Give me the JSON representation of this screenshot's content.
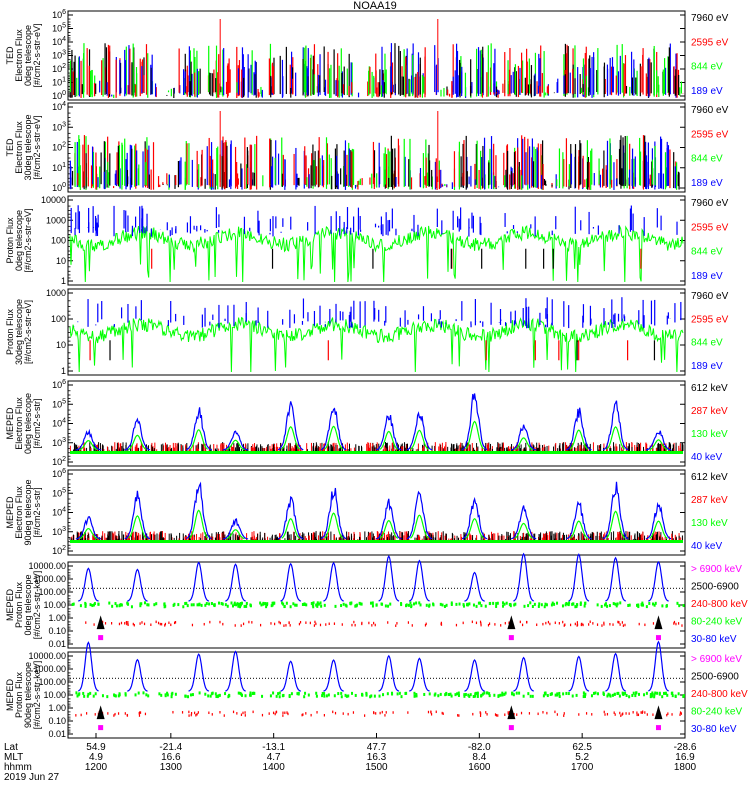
{
  "title": "NOAA19",
  "colors": {
    "black": "#000000",
    "red": "#ff0000",
    "green": "#00ff00",
    "blue": "#0000ff",
    "magenta": "#ff00ff"
  },
  "panels": [
    {
      "ylabel": [
        "TED",
        "Electron Flux",
        "0deg telescope",
        "[#/cm2-s-str-eV]"
      ],
      "yticks": [
        "10^6",
        "10^5",
        "10^4",
        "10^3",
        "10^2",
        "10^1",
        "10^0"
      ],
      "scale": "log",
      "legend": [
        {
          "label": "7960 eV",
          "color": "#000000"
        },
        {
          "label": "2595 eV",
          "color": "#ff0000"
        },
        {
          "label": "844 eV",
          "color": "#00ff00"
        },
        {
          "label": "189 eV",
          "color": "#0000ff"
        }
      ],
      "style": "spikes",
      "seed": 11
    },
    {
      "ylabel": [
        "TED",
        "Electron Flux",
        "30deg telescope",
        "[#/cm2-s-str-eV]"
      ],
      "yticks": [
        "10^4",
        "10^3",
        "10^2",
        "10^1",
        "10^0"
      ],
      "scale": "log",
      "legend": [
        {
          "label": "7960 eV",
          "color": "#000000"
        },
        {
          "label": "2595 eV",
          "color": "#ff0000"
        },
        {
          "label": "844 eV",
          "color": "#00ff00"
        },
        {
          "label": "189 eV",
          "color": "#0000ff"
        }
      ],
      "style": "spikes",
      "seed": 23
    },
    {
      "ylabel": [
        "Proton Flux",
        "0deg telescope",
        "[#/cm2-s-str-eV]"
      ],
      "yticks": [
        "10000",
        "1000",
        "100",
        "10",
        "1"
      ],
      "scale": "linear-labels",
      "legend": [
        {
          "label": "7960 eV",
          "color": "#000000"
        },
        {
          "label": "2595 eV",
          "color": "#ff0000"
        },
        {
          "label": "844 eV",
          "color": "#00ff00"
        },
        {
          "label": "189 eV",
          "color": "#0000ff"
        }
      ],
      "style": "proton",
      "seed": 37
    },
    {
      "ylabel": [
        "Proton Flux",
        "30deg telescope",
        "[#/cm2-s-str-eV]"
      ],
      "yticks": [
        "1000",
        "100",
        "10",
        "1"
      ],
      "scale": "linear-labels",
      "legend": [
        {
          "label": "7960 eV",
          "color": "#000000"
        },
        {
          "label": "2595 eV",
          "color": "#ff0000"
        },
        {
          "label": "844 eV",
          "color": "#00ff00"
        },
        {
          "label": "189 eV",
          "color": "#0000ff"
        }
      ],
      "style": "proton",
      "seed": 41
    },
    {
      "ylabel": [
        "MEPED",
        "Electron Flux",
        "0deg telescope",
        "[#/cm2-s-str]"
      ],
      "yticks": [
        "10^6",
        "10^5",
        "10^4",
        "10^3",
        "10^2"
      ],
      "scale": "log",
      "legend": [
        {
          "label": "612 keV",
          "color": "#000000"
        },
        {
          "label": "287 keV",
          "color": "#ff0000"
        },
        {
          "label": "130 keV",
          "color": "#00ff00"
        },
        {
          "label": "40 keV",
          "color": "#0000ff"
        }
      ],
      "style": "meped",
      "seed": 53
    },
    {
      "ylabel": [
        "MEPED",
        "Electron Flux",
        "90deg telescope",
        "[#/cm2-s-str]"
      ],
      "yticks": [
        "10^6",
        "10^5",
        "10^4",
        "10^3",
        "10^2"
      ],
      "scale": "log",
      "legend": [
        {
          "label": "612 keV",
          "color": "#000000"
        },
        {
          "label": "287 keV",
          "color": "#ff0000"
        },
        {
          "label": "130 keV",
          "color": "#00ff00"
        },
        {
          "label": "40 keV",
          "color": "#0000ff"
        }
      ],
      "style": "meped",
      "seed": 67
    },
    {
      "ylabel": [
        "MEPED",
        "Proton Flux",
        "0deg telescope",
        "[#/cm2-s-str-keV]"
      ],
      "yticks": [
        "10000.00",
        "1000.00",
        "100.00",
        "10.00",
        "1.00",
        "0.10",
        "0.01"
      ],
      "scale": "log",
      "legend": [
        {
          "label": "> 6900 keV",
          "color": "#ff00ff"
        },
        {
          "label": "2500-6900",
          "color": "#000000"
        },
        {
          "label": "240-800 keV",
          "color": "#ff0000"
        },
        {
          "label": "80-240 keV",
          "color": "#00ff00"
        },
        {
          "label": "30-80 keV",
          "color": "#0000ff"
        }
      ],
      "style": "mproton",
      "seed": 79
    },
    {
      "ylabel": [
        "MEPED",
        "Proton Flux",
        "90deg telescope",
        "[#/cm2-s-str-keV]"
      ],
      "yticks": [
        "10000.00",
        "1000.00",
        "100.00",
        "10.00",
        "1.00",
        "0.10",
        "0.01"
      ],
      "scale": "log",
      "legend": [
        {
          "label": "> 6900 keV",
          "color": "#ff00ff"
        },
        {
          "label": "2500-6900",
          "color": "#000000"
        },
        {
          "label": "240-800 keV",
          "color": "#ff0000"
        },
        {
          "label": "80-240 keV",
          "color": "#00ff00"
        },
        {
          "label": "30-80 keV",
          "color": "#0000ff"
        }
      ],
      "style": "mproton",
      "seed": 97
    }
  ],
  "xaxis": {
    "row_labels": [
      "Lat",
      "MLT",
      "hhmm"
    ],
    "date": "2019 Jun 27",
    "ticks": [
      {
        "lat": "54.9",
        "mlt": "4.9",
        "hhmm": "1200"
      },
      {
        "lat": "-21.4",
        "mlt": "16.6",
        "hhmm": "1300"
      },
      {
        "lat": "-13.1",
        "mlt": "4.7",
        "hhmm": "1400"
      },
      {
        "lat": "47.7",
        "mlt": "16.3",
        "hhmm": "1500"
      },
      {
        "lat": "-82.0",
        "mlt": "8.4",
        "hhmm": "1600"
      },
      {
        "lat": "62.5",
        "mlt": "5.2",
        "hhmm": "1700"
      },
      {
        "lat": "-28.6",
        "mlt": "16.9",
        "hhmm": "1800"
      }
    ]
  },
  "chart_data": {
    "type": "line",
    "title": "NOAA19",
    "x": [
      "1200",
      "1300",
      "1400",
      "1500",
      "1600",
      "1700",
      "1800"
    ],
    "xlabel": "",
    "ylabel": "",
    "grid": false,
    "legend_position": "right",
    "panels": [
      {
        "name": "TED Electron Flux 0deg telescope",
        "units": "#/cm2-s-str-eV",
        "ylim": [
          "10^0",
          "10^6"
        ],
        "scale": "log",
        "series": [
          "7960 eV",
          "2595 eV",
          "844 eV",
          "189 eV"
        ]
      },
      {
        "name": "TED Electron Flux 30deg telescope",
        "units": "#/cm2-s-str-eV",
        "ylim": [
          "10^0",
          "10^4"
        ],
        "scale": "log",
        "series": [
          "7960 eV",
          "2595 eV",
          "844 eV",
          "189 eV"
        ]
      },
      {
        "name": "Proton Flux 0deg telescope",
        "units": "#/cm2-s-str-eV",
        "ylim": [
          1,
          10000
        ],
        "scale": "log",
        "series": [
          "7960 eV",
          "2595 eV",
          "844 eV",
          "189 eV"
        ]
      },
      {
        "name": "Proton Flux 30deg telescope",
        "units": "#/cm2-s-str-eV",
        "ylim": [
          1,
          1000
        ],
        "scale": "log",
        "series": [
          "7960 eV",
          "2595 eV",
          "844 eV",
          "189 eV"
        ]
      },
      {
        "name": "MEPED Electron Flux 0deg telescope",
        "units": "#/cm2-s-str",
        "ylim": [
          "10^2",
          "10^6"
        ],
        "scale": "log",
        "series": [
          "612 keV",
          "287 keV",
          "130 keV",
          "40 keV"
        ]
      },
      {
        "name": "MEPED Electron Flux 90deg telescope",
        "units": "#/cm2-s-str",
        "ylim": [
          "10^2",
          "10^6"
        ],
        "scale": "log",
        "series": [
          "612 keV",
          "287 keV",
          "130 keV",
          "40 keV"
        ]
      },
      {
        "name": "MEPED Proton Flux 0deg telescope",
        "units": "#/cm2-s-str-keV",
        "ylim": [
          0.01,
          10000
        ],
        "scale": "log",
        "series": [
          "> 6900 keV",
          "2500-6900",
          "240-800 keV",
          "80-240 keV",
          "30-80 keV"
        ]
      },
      {
        "name": "MEPED Proton Flux 90deg telescope",
        "units": "#/cm2-s-str-keV",
        "ylim": [
          0.01,
          10000
        ],
        "scale": "log",
        "series": [
          "> 6900 keV",
          "2500-6900",
          "240-800 keV",
          "80-240 keV",
          "30-80 keV"
        ]
      }
    ]
  }
}
